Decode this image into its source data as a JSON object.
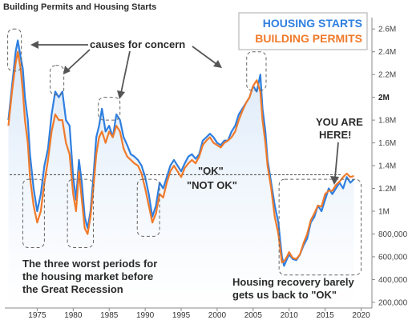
{
  "title": "Building Permits and Housing Starts",
  "legend": {
    "housing_starts": "HOUSING STARTS",
    "building_permits": "BUILDING PERMITS"
  },
  "colors": {
    "housing_starts": "#2f7fe0",
    "building_permits": "#f07a2a",
    "area_fill": "#d6e6f8",
    "reference_line": "#555555",
    "highlight_box": "#666666"
  },
  "annotations": {
    "causes": "causes for concern",
    "ok": "\"OK\"",
    "not_ok": "\"NOT OK\"",
    "you_are_here_1": "YOU ARE",
    "you_are_here_2": "HERE!",
    "worst_1": "The three worst periods for",
    "worst_2": "the housing market before",
    "worst_3": "the Great Recession",
    "recovery_1": "Housing recovery barely",
    "recovery_2": "gets us back to \"OK\""
  },
  "chart_data": {
    "type": "line",
    "title": "Building Permits and Housing Starts",
    "y_axis_side": "right",
    "ylim": [
      150000,
      2700000
    ],
    "xlim": [
      1970.5,
      2021.5
    ],
    "y_ticks": [
      {
        "value": 200000,
        "label": "200,000"
      },
      {
        "value": 400000,
        "label": "400,000"
      },
      {
        "value": 600000,
        "label": "600,000"
      },
      {
        "value": 800000,
        "label": "800,000"
      },
      {
        "value": 1000000,
        "label": "1M"
      },
      {
        "value": 1200000,
        "label": "1.2M"
      },
      {
        "value": 1400000,
        "label": "1.4M"
      },
      {
        "value": 1600000,
        "label": "1.6M"
      },
      {
        "value": 1800000,
        "label": "1.8M"
      },
      {
        "value": 2000000,
        "label": "2M"
      },
      {
        "value": 2200000,
        "label": "2.2M"
      },
      {
        "value": 2400000,
        "label": "2.4M"
      },
      {
        "value": 2600000,
        "label": "2.6M"
      }
    ],
    "bold_tick": 2000000,
    "x_ticks": [
      1975,
      1980,
      1985,
      1990,
      1995,
      2000,
      2005,
      2010,
      2015,
      2020
    ],
    "reference_line": 1320000,
    "highlight_boxes": [
      {
        "x0": 1970.9,
        "x1": 1972.8,
        "y0": 2230000,
        "y1": 2600000
      },
      {
        "x0": 1976.8,
        "x1": 1978.7,
        "y0": 2020000,
        "y1": 2280000
      },
      {
        "x0": 1983.5,
        "x1": 1986.5,
        "y0": 1800000,
        "y1": 2000000
      },
      {
        "x0": 2004.1,
        "x1": 2006.8,
        "y0": 2060000,
        "y1": 2400000
      },
      {
        "x0": 1973.0,
        "x1": 1976.0,
        "y0": 680000,
        "y1": 1280000
      },
      {
        "x0": 1979.2,
        "x1": 1982.8,
        "y0": 680000,
        "y1": 1280000
      },
      {
        "x0": 1988.9,
        "x1": 1992.0,
        "y0": 780000,
        "y1": 1280000
      },
      {
        "x0": 2008.6,
        "x1": 2020.0,
        "y0": 440000,
        "y1": 1280000
      }
    ],
    "series": [
      {
        "name": "HOUSING STARTS",
        "x": [
          1971.0,
          1971.5,
          1972.0,
          1972.3,
          1972.7,
          1973.0,
          1973.3,
          1973.7,
          1974.0,
          1974.5,
          1975.0,
          1975.5,
          1976.0,
          1976.5,
          1977.0,
          1977.5,
          1978.0,
          1978.5,
          1979.0,
          1979.5,
          1980.0,
          1980.4,
          1980.8,
          1981.2,
          1981.6,
          1982.0,
          1982.4,
          1982.8,
          1983.2,
          1983.6,
          1984.0,
          1984.5,
          1985.0,
          1985.5,
          1986.0,
          1986.5,
          1987.0,
          1987.5,
          1988.0,
          1988.5,
          1989.0,
          1989.5,
          1990.0,
          1990.5,
          1991.0,
          1991.5,
          1992.0,
          1992.5,
          1993.0,
          1993.5,
          1994.0,
          1994.5,
          1995.0,
          1995.5,
          1996.0,
          1996.5,
          1997.0,
          1997.5,
          1998.0,
          1998.5,
          1999.0,
          1999.5,
          2000.0,
          2000.5,
          2001.0,
          2001.5,
          2002.0,
          2002.5,
          2003.0,
          2003.5,
          2004.0,
          2004.5,
          2005.0,
          2005.5,
          2006.0,
          2006.3,
          2006.7,
          2007.0,
          2007.5,
          2008.0,
          2008.5,
          2009.0,
          2009.3,
          2009.7,
          2010.0,
          2010.5,
          2011.0,
          2011.5,
          2012.0,
          2012.5,
          2013.0,
          2013.5,
          2014.0,
          2014.5,
          2015.0,
          2015.5,
          2016.0,
          2016.5,
          2017.0,
          2017.5,
          2018.0,
          2018.5,
          2019.0
        ],
        "values": [
          1800000,
          2100000,
          2400000,
          2500000,
          2350000,
          2250000,
          2000000,
          1800000,
          1500000,
          1200000,
          1000000,
          1150000,
          1400000,
          1550000,
          1850000,
          2050000,
          2000000,
          2050000,
          1800000,
          1750000,
          1300000,
          1100000,
          1450000,
          1250000,
          950000,
          850000,
          1000000,
          1300000,
          1650000,
          1750000,
          1900000,
          1700000,
          1750000,
          1650000,
          1850000,
          1800000,
          1650000,
          1580000,
          1500000,
          1480000,
          1450000,
          1400000,
          1300000,
          1150000,
          950000,
          1050000,
          1250000,
          1200000,
          1300000,
          1400000,
          1450000,
          1400000,
          1350000,
          1420000,
          1480000,
          1500000,
          1460000,
          1500000,
          1620000,
          1650000,
          1680000,
          1650000,
          1600000,
          1580000,
          1620000,
          1620000,
          1700000,
          1750000,
          1850000,
          1900000,
          1950000,
          2000000,
          2100000,
          2050000,
          2200000,
          1900000,
          1700000,
          1450000,
          1250000,
          1050000,
          900000,
          600000,
          520000,
          580000,
          620000,
          580000,
          570000,
          620000,
          700000,
          760000,
          900000,
          950000,
          1050000,
          1000000,
          1100000,
          1200000,
          1150000,
          1200000,
          1250000,
          1200000,
          1300000,
          1250000,
          1280000
        ]
      },
      {
        "name": "BUILDING PERMITS",
        "x": [
          1971.0,
          1971.5,
          1972.0,
          1972.3,
          1972.7,
          1973.0,
          1973.3,
          1973.7,
          1974.0,
          1974.5,
          1975.0,
          1975.5,
          1976.0,
          1976.5,
          1977.0,
          1977.5,
          1978.0,
          1978.5,
          1979.0,
          1979.5,
          1980.0,
          1980.4,
          1980.8,
          1981.2,
          1981.6,
          1982.0,
          1982.4,
          1982.8,
          1983.2,
          1983.6,
          1984.0,
          1984.5,
          1985.0,
          1985.5,
          1986.0,
          1986.5,
          1987.0,
          1987.5,
          1988.0,
          1988.5,
          1989.0,
          1989.5,
          1990.0,
          1990.5,
          1991.0,
          1991.5,
          1992.0,
          1992.5,
          1993.0,
          1993.5,
          1994.0,
          1994.5,
          1995.0,
          1995.5,
          1996.0,
          1996.5,
          1997.0,
          1997.5,
          1998.0,
          1998.5,
          1999.0,
          1999.5,
          2000.0,
          2000.5,
          2001.0,
          2001.5,
          2002.0,
          2002.5,
          2003.0,
          2003.5,
          2004.0,
          2004.5,
          2005.0,
          2005.5,
          2006.0,
          2006.3,
          2006.7,
          2007.0,
          2007.5,
          2008.0,
          2008.5,
          2009.0,
          2009.3,
          2009.7,
          2010.0,
          2010.5,
          2011.0,
          2011.5,
          2012.0,
          2012.5,
          2013.0,
          2013.5,
          2014.0,
          2014.5,
          2015.0,
          2015.5,
          2016.0,
          2016.5,
          2017.0,
          2017.5,
          2018.0,
          2018.5,
          2019.0
        ],
        "values": [
          1750000,
          2050000,
          2300000,
          2400000,
          2250000,
          2050000,
          1800000,
          1600000,
          1300000,
          1050000,
          900000,
          1000000,
          1250000,
          1450000,
          1700000,
          1850000,
          1800000,
          1800000,
          1600000,
          1500000,
          1150000,
          1000000,
          1350000,
          1100000,
          850000,
          800000,
          950000,
          1200000,
          1500000,
          1650000,
          1700000,
          1600000,
          1700000,
          1650000,
          1750000,
          1700000,
          1550000,
          1480000,
          1450000,
          1420000,
          1400000,
          1330000,
          1200000,
          1050000,
          900000,
          980000,
          1150000,
          1120000,
          1250000,
          1350000,
          1400000,
          1350000,
          1300000,
          1380000,
          1420000,
          1450000,
          1420000,
          1480000,
          1580000,
          1620000,
          1650000,
          1600000,
          1580000,
          1560000,
          1600000,
          1620000,
          1650000,
          1700000,
          1800000,
          1880000,
          1950000,
          2000000,
          2100000,
          2150000,
          2050000,
          1800000,
          1600000,
          1400000,
          1200000,
          950000,
          800000,
          550000,
          560000,
          600000,
          640000,
          590000,
          580000,
          620000,
          720000,
          800000,
          920000,
          980000,
          1050000,
          1040000,
          1150000,
          1180000,
          1180000,
          1230000,
          1260000,
          1300000,
          1330000,
          1300000,
          1310000
        ]
      }
    ]
  }
}
